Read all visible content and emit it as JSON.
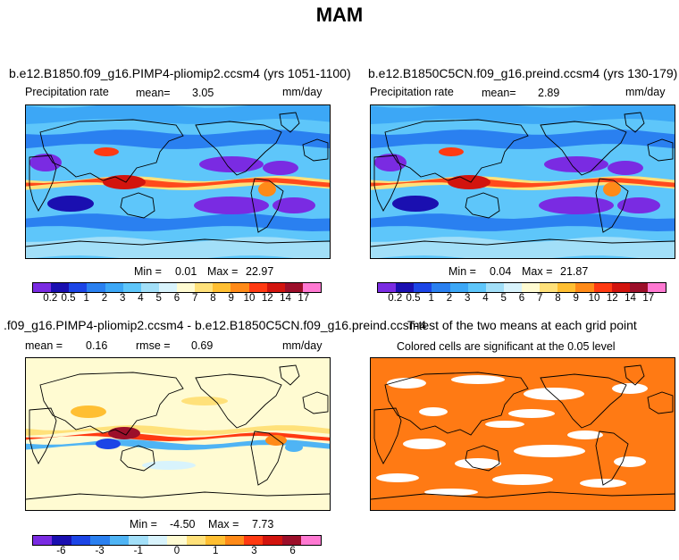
{
  "page": {
    "title": "MAM"
  },
  "panels": {
    "p1": {
      "title": "b.e12.B1850.f09_g16.PIMP4-pliomip2.ccsm4 (yrs 1051-1100)",
      "variable": "Precipitation rate",
      "mean_label": "mean=",
      "mean_value": "3.05",
      "units": "mm/day",
      "min_label": "Min =",
      "min_value": "0.01",
      "max_label": "Max =",
      "max_value": "22.97"
    },
    "p2": {
      "title": "b.e12.B1850C5CN.f09_g16.preind.ccsm4 (yrs 130-179)",
      "variable": "Precipitation rate",
      "mean_label": "mean=",
      "mean_value": "2.89",
      "units": "mm/day",
      "min_label": "Min =",
      "min_value": "0.04",
      "max_label": "Max =",
      "max_value": "21.87"
    },
    "p3": {
      "title": ".f09_g16.PIMP4-pliomip2.ccsm4 - b.e12.B1850C5CN.f09_g16.preind.ccsm4",
      "mean_label": "mean =",
      "mean_value": "0.16",
      "rmse_label": "rmse =",
      "rmse_value": "0.69",
      "units": "mm/day",
      "min_label": "Min =",
      "min_value": "-4.50",
      "max_label": "Max =",
      "max_value": "7.73"
    },
    "p4": {
      "title": "T-test of the two means at each grid point",
      "subtitle": "Colored cells are significant at the 0.05 level"
    }
  },
  "chart_data": [
    {
      "type": "heatmap",
      "title": "b.e12.B1850.f09_g16.PIMP4-pliomip2.ccsm4 (yrs 1051-1100)",
      "variable": "Precipitation rate",
      "units": "mm/day",
      "mean": 3.05,
      "min": 0.01,
      "max": 22.97,
      "colorbar_levels": [
        "0.2",
        "0.5",
        "1",
        "2",
        "3",
        "4",
        "5",
        "6",
        "7",
        "8",
        "9",
        "10",
        "12",
        "14",
        "17"
      ],
      "colorbar_colors": [
        "#7a2be2",
        "#1a0fb0",
        "#1c45e6",
        "#2a80f0",
        "#3ca7f6",
        "#5ec6fa",
        "#a2dff8",
        "#d8f3fc",
        "#fffbd2",
        "#ffe17a",
        "#ffbf32",
        "#ff8a18",
        "#ff3a12",
        "#d2140e",
        "#9c0f2a",
        "#ff79d2"
      ]
    },
    {
      "type": "heatmap",
      "title": "b.e12.B1850C5CN.f09_g16.preind.ccsm4 (yrs 130-179)",
      "variable": "Precipitation rate",
      "units": "mm/day",
      "mean": 2.89,
      "min": 0.04,
      "max": 21.87,
      "colorbar_levels": [
        "0.2",
        "0.5",
        "1",
        "2",
        "3",
        "4",
        "5",
        "6",
        "7",
        "8",
        "9",
        "10",
        "12",
        "14",
        "17"
      ],
      "colorbar_colors": [
        "#7a2be2",
        "#1a0fb0",
        "#1c45e6",
        "#2a80f0",
        "#3ca7f6",
        "#5ec6fa",
        "#a2dff8",
        "#d8f3fc",
        "#fffbd2",
        "#ffe17a",
        "#ffbf32",
        "#ff8a18",
        "#ff3a12",
        "#d2140e",
        "#9c0f2a",
        "#ff79d2"
      ]
    },
    {
      "type": "heatmap",
      "title": ".f09_g16.PIMP4-pliomip2.ccsm4 - b.e12.B1850C5CN.f09_g16.preind.ccsm4",
      "units": "mm/day",
      "mean": 0.16,
      "rmse": 0.69,
      "min": -4.5,
      "max": 7.73,
      "colorbar_labels": [
        "-6",
        "-3",
        "-1",
        "0",
        "1",
        "3",
        "6"
      ],
      "colorbar_colors": [
        "#7a2be2",
        "#1a0fb0",
        "#1c45e6",
        "#2a80f0",
        "#4fb4f4",
        "#a2dff8",
        "#d8f3fc",
        "#fffbd2",
        "#ffe17a",
        "#ffbf32",
        "#ff8a18",
        "#ff3a12",
        "#d2140e",
        "#9c0f2a",
        "#ff79d2"
      ]
    },
    {
      "type": "heatmap",
      "title": "T-test of the two means at each grid point",
      "subtitle": "Colored cells are significant at the 0.05 level",
      "significant_color": "#ff7a14"
    }
  ],
  "colors": {
    "precip_base": "#4aa6ee",
    "diff_base": "#fff7c8",
    "ttest_color": "#ff7a14",
    "coast": "#000000"
  }
}
